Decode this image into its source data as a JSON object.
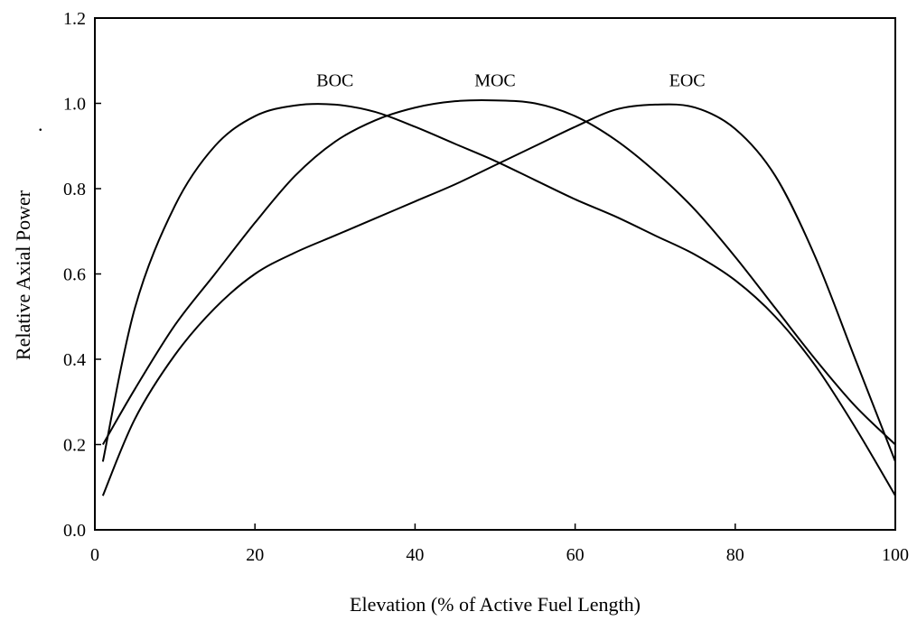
{
  "chart_data": {
    "type": "line",
    "title": "",
    "xlabel": "Elevation (% of Active Fuel Length)",
    "ylabel": "Relative Axial Power",
    "ylabel_mark": ".",
    "xlim": [
      0,
      100
    ],
    "ylim": [
      0,
      1.2
    ],
    "xticks": [
      0,
      20,
      40,
      60,
      80,
      100
    ],
    "yticks": [
      0.0,
      0.2,
      0.4,
      0.6,
      0.8,
      1.0,
      1.2
    ],
    "xtick_labels": [
      "0",
      "20",
      "40",
      "60",
      "80",
      "100"
    ],
    "ytick_labels": [
      "0.0",
      "0.2",
      "0.4",
      "0.6",
      "0.8",
      "1.0",
      "1.2"
    ],
    "grid": false,
    "legend": "none",
    "series": [
      {
        "name": "BOC",
        "x": [
          1,
          5,
          10,
          15,
          20,
          25,
          30,
          35,
          40,
          45,
          50,
          55,
          60,
          65,
          70,
          75,
          80,
          85,
          90,
          95,
          100
        ],
        "y": [
          0.16,
          0.52,
          0.76,
          0.9,
          0.97,
          0.995,
          0.997,
          0.98,
          0.945,
          0.905,
          0.865,
          0.82,
          0.775,
          0.735,
          0.69,
          0.645,
          0.585,
          0.5,
          0.385,
          0.24,
          0.08
        ]
      },
      {
        "name": "MOC",
        "x": [
          1,
          5,
          10,
          15,
          20,
          25,
          30,
          35,
          40,
          45,
          50,
          55,
          60,
          65,
          70,
          75,
          80,
          85,
          90,
          95,
          100
        ],
        "y": [
          0.2,
          0.33,
          0.48,
          0.6,
          0.72,
          0.83,
          0.91,
          0.96,
          0.99,
          1.005,
          1.007,
          1.0,
          0.97,
          0.915,
          0.84,
          0.75,
          0.64,
          0.52,
          0.4,
          0.29,
          0.2
        ]
      },
      {
        "name": "EOC",
        "x": [
          1,
          5,
          10,
          15,
          20,
          25,
          30,
          35,
          40,
          45,
          50,
          55,
          60,
          65,
          70,
          75,
          80,
          85,
          90,
          95,
          100
        ],
        "y": [
          0.08,
          0.26,
          0.41,
          0.52,
          0.6,
          0.65,
          0.69,
          0.73,
          0.77,
          0.81,
          0.855,
          0.9,
          0.945,
          0.985,
          0.997,
          0.99,
          0.94,
          0.83,
          0.64,
          0.4,
          0.16
        ]
      }
    ],
    "series_labels": [
      {
        "text": "BOC",
        "x": 30,
        "y": 1.04
      },
      {
        "text": "MOC",
        "x": 50,
        "y": 1.04
      },
      {
        "text": "EOC",
        "x": 74,
        "y": 1.04
      }
    ]
  }
}
